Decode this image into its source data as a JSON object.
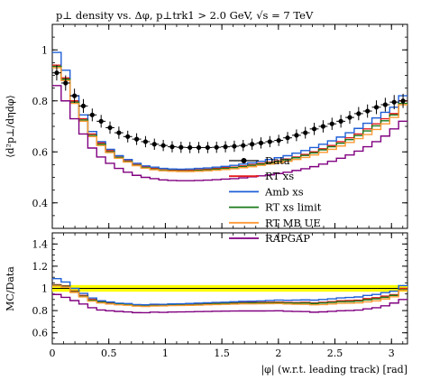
{
  "chart_data": [
    {
      "type": "line",
      "title": "p⊥ density vs. Δφ, p⊥trk1 > 2.0 GeV, √s = 7 TeV",
      "ylabel": "⟨d²p⊥/dηdφ⟩",
      "xlim": [
        0,
        3.1416
      ],
      "ylim": [
        0.3,
        1.1
      ],
      "yticks": [
        "0.4",
        "0.6",
        "0.8",
        "1"
      ],
      "legend_position": "center-right",
      "x_edges": [
        0,
        0.0785,
        0.157,
        0.2356,
        0.3142,
        0.3927,
        0.4712,
        0.5498,
        0.6283,
        0.7069,
        0.7854,
        0.8639,
        0.9425,
        1.021,
        1.0996,
        1.1781,
        1.2566,
        1.3352,
        1.4137,
        1.4923,
        1.5708,
        1.6493,
        1.7279,
        1.8064,
        1.885,
        1.9635,
        2.042,
        2.1206,
        2.1991,
        2.2777,
        2.3562,
        2.4347,
        2.5133,
        2.5918,
        2.6704,
        2.7489,
        2.8274,
        2.906,
        2.9845,
        3.0631,
        3.1416
      ],
      "series": [
        {
          "name": "Data",
          "style": "points",
          "color": "#000000",
          "values": [
            0.91,
            0.87,
            0.82,
            0.78,
            0.745,
            0.72,
            0.695,
            0.675,
            0.66,
            0.65,
            0.64,
            0.63,
            0.625,
            0.62,
            0.618,
            0.617,
            0.617,
            0.617,
            0.618,
            0.62,
            0.622,
            0.625,
            0.63,
            0.635,
            0.64,
            0.645,
            0.655,
            0.665,
            0.675,
            0.69,
            0.7,
            0.71,
            0.72,
            0.735,
            0.75,
            0.76,
            0.775,
            0.785,
            0.795,
            0.8
          ],
          "errors": [
            0.03,
            0.03,
            0.028,
            0.027,
            0.025,
            0.025,
            0.024,
            0.024,
            0.023,
            0.023,
            0.022,
            0.022,
            0.022,
            0.022,
            0.022,
            0.022,
            0.022,
            0.022,
            0.022,
            0.022,
            0.022,
            0.022,
            0.022,
            0.022,
            0.022,
            0.022,
            0.023,
            0.023,
            0.023,
            0.024,
            0.024,
            0.024,
            0.025,
            0.025,
            0.026,
            0.026,
            0.027,
            0.027,
            0.028,
            0.028
          ]
        },
        {
          "name": "RT xs",
          "style": "step",
          "color": "#e41a1c",
          "values": [
            0.94,
            0.89,
            0.8,
            0.73,
            0.67,
            0.635,
            0.605,
            0.58,
            0.565,
            0.55,
            0.54,
            0.535,
            0.53,
            0.528,
            0.528,
            0.528,
            0.53,
            0.532,
            0.535,
            0.538,
            0.54,
            0.545,
            0.55,
            0.555,
            0.56,
            0.565,
            0.572,
            0.58,
            0.59,
            0.6,
            0.612,
            0.625,
            0.64,
            0.655,
            0.67,
            0.69,
            0.71,
            0.73,
            0.75,
            0.8
          ]
        },
        {
          "name": "Amb xs",
          "style": "step",
          "color": "#1f5fd6",
          "values": [
            0.99,
            0.92,
            0.82,
            0.745,
            0.68,
            0.64,
            0.61,
            0.585,
            0.57,
            0.555,
            0.545,
            0.54,
            0.535,
            0.533,
            0.532,
            0.533,
            0.535,
            0.537,
            0.54,
            0.543,
            0.547,
            0.552,
            0.557,
            0.563,
            0.57,
            0.577,
            0.585,
            0.595,
            0.605,
            0.617,
            0.63,
            0.643,
            0.658,
            0.675,
            0.692,
            0.712,
            0.733,
            0.755,
            0.775,
            0.82
          ]
        },
        {
          "name": "RT xs limit",
          "style": "step",
          "color": "#1a7a1a",
          "values": [
            0.935,
            0.885,
            0.795,
            0.725,
            0.665,
            0.63,
            0.6,
            0.578,
            0.562,
            0.548,
            0.538,
            0.532,
            0.528,
            0.526,
            0.525,
            0.525,
            0.527,
            0.529,
            0.532,
            0.535,
            0.538,
            0.542,
            0.547,
            0.552,
            0.557,
            0.562,
            0.569,
            0.577,
            0.586,
            0.596,
            0.608,
            0.62,
            0.634,
            0.648,
            0.664,
            0.682,
            0.702,
            0.722,
            0.745,
            0.79
          ]
        },
        {
          "name": "RT MB UE",
          "style": "step",
          "color": "#ff9933",
          "values": [
            0.93,
            0.88,
            0.79,
            0.72,
            0.66,
            0.625,
            0.597,
            0.575,
            0.56,
            0.546,
            0.536,
            0.53,
            0.526,
            0.524,
            0.523,
            0.523,
            0.524,
            0.526,
            0.528,
            0.531,
            0.534,
            0.538,
            0.542,
            0.547,
            0.552,
            0.557,
            0.563,
            0.57,
            0.578,
            0.588,
            0.598,
            0.61,
            0.623,
            0.637,
            0.652,
            0.668,
            0.688,
            0.71,
            0.735,
            0.785
          ]
        },
        {
          "name": "RAPGAP",
          "style": "step",
          "color": "#800080",
          "values": [
            0.86,
            0.8,
            0.73,
            0.67,
            0.615,
            0.58,
            0.555,
            0.535,
            0.52,
            0.508,
            0.5,
            0.495,
            0.49,
            0.488,
            0.487,
            0.487,
            0.488,
            0.489,
            0.491,
            0.493,
            0.495,
            0.498,
            0.502,
            0.506,
            0.51,
            0.515,
            0.52,
            0.527,
            0.534,
            0.542,
            0.552,
            0.563,
            0.575,
            0.588,
            0.603,
            0.62,
            0.64,
            0.662,
            0.69,
            0.72
          ]
        }
      ]
    },
    {
      "type": "line",
      "ylabel": "MC/Data",
      "xlabel": "|φ| (w.r.t. leading track) [rad]",
      "xlim": [
        0,
        3.1416
      ],
      "ylim": [
        0.5,
        1.5
      ],
      "yticks": [
        "0.6",
        "0.8",
        "1",
        "1.2",
        "1.4"
      ],
      "xticks": [
        "0",
        "0.5",
        "1",
        "1.5",
        "2",
        "2.5",
        "3"
      ],
      "reference_line": 1.0,
      "band": [
        0.97,
        1.03
      ],
      "band_color": "#ffff00"
    }
  ]
}
